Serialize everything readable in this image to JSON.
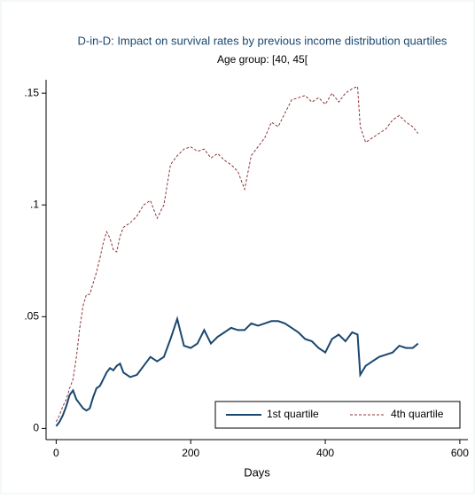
{
  "chart_data": {
    "type": "line",
    "title": "D-in-D: Impact on survival rates by previous income distribution quartiles",
    "subtitle": "Age group: [40, 45[",
    "xlabel": "Days",
    "x": [
      0,
      5,
      10,
      15,
      20,
      25,
      30,
      35,
      40,
      45,
      50,
      55,
      60,
      65,
      70,
      75,
      80,
      85,
      90,
      95,
      100,
      110,
      120,
      130,
      140,
      150,
      160,
      170,
      180,
      190,
      200,
      210,
      220,
      230,
      240,
      250,
      260,
      270,
      280,
      290,
      300,
      310,
      320,
      330,
      340,
      350,
      360,
      370,
      380,
      390,
      400,
      410,
      420,
      430,
      440,
      448,
      452,
      460,
      470,
      480,
      490,
      500,
      510,
      520,
      530,
      538
    ],
    "series": [
      {
        "name": "1st quartile",
        "color": "#1a476f",
        "dash": "solid",
        "values": [
          0.001,
          0.003,
          0.006,
          0.01,
          0.015,
          0.017,
          0.013,
          0.011,
          0.009,
          0.008,
          0.009,
          0.014,
          0.018,
          0.019,
          0.022,
          0.025,
          0.027,
          0.026,
          0.028,
          0.029,
          0.025,
          0.023,
          0.024,
          0.028,
          0.032,
          0.03,
          0.032,
          0.04,
          0.049,
          0.037,
          0.036,
          0.038,
          0.044,
          0.038,
          0.041,
          0.043,
          0.045,
          0.044,
          0.044,
          0.047,
          0.046,
          0.047,
          0.048,
          0.048,
          0.047,
          0.045,
          0.043,
          0.04,
          0.039,
          0.036,
          0.034,
          0.04,
          0.042,
          0.039,
          0.043,
          0.042,
          0.024,
          0.028,
          0.03,
          0.032,
          0.033,
          0.034,
          0.037,
          0.036,
          0.036,
          0.038
        ]
      },
      {
        "name": "4th quartile",
        "color": "#90353b",
        "dash": "dashed",
        "values": [
          0.003,
          0.006,
          0.01,
          0.013,
          0.018,
          0.022,
          0.032,
          0.045,
          0.055,
          0.06,
          0.06,
          0.065,
          0.07,
          0.076,
          0.083,
          0.088,
          0.085,
          0.08,
          0.079,
          0.086,
          0.09,
          0.092,
          0.095,
          0.1,
          0.102,
          0.094,
          0.1,
          0.118,
          0.122,
          0.125,
          0.126,
          0.124,
          0.125,
          0.121,
          0.123,
          0.12,
          0.118,
          0.115,
          0.107,
          0.122,
          0.126,
          0.13,
          0.137,
          0.135,
          0.141,
          0.147,
          0.148,
          0.149,
          0.146,
          0.148,
          0.145,
          0.15,
          0.146,
          0.15,
          0.152,
          0.153,
          0.135,
          0.128,
          0.13,
          0.132,
          0.134,
          0.138,
          0.14,
          0.137,
          0.135,
          0.132
        ]
      }
    ],
    "xlim": [
      -15,
      612
    ],
    "xticks": [
      0,
      200,
      400,
      600
    ],
    "ylim": [
      -0.005,
      0.156
    ],
    "yticks": [
      {
        "value": 0,
        "label": "0"
      },
      {
        "value": 0.05,
        "label": ".05"
      },
      {
        "value": 0.1,
        "label": ".1"
      },
      {
        "value": 0.15,
        "label": ".15"
      }
    ],
    "grid": false,
    "legend_position": "bottom-right"
  }
}
